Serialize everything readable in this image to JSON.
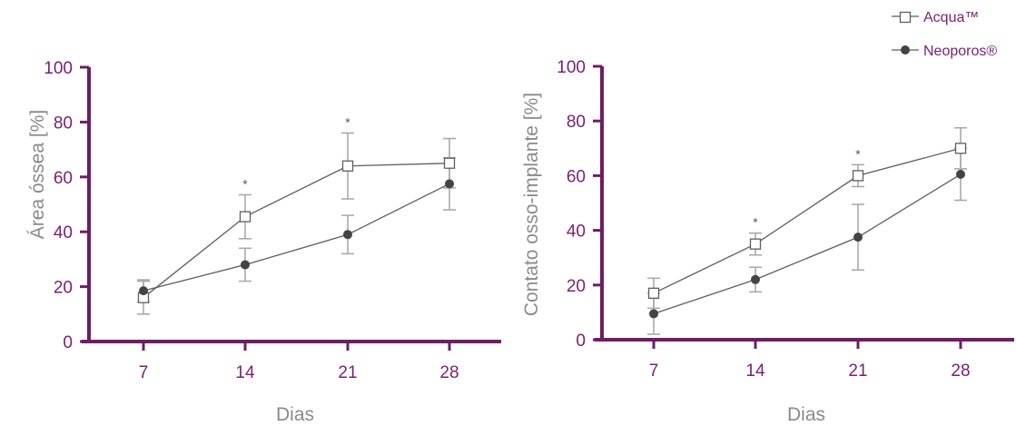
{
  "legend": [
    {
      "label": "Acqua™",
      "marker": "square-open"
    },
    {
      "label": "Neoporos®",
      "marker": "circle-filled"
    }
  ],
  "colors": {
    "axis": "#6e1d66",
    "tick_text": "#7a2072",
    "line": "#5e5e5e",
    "error": "#aaaaaa",
    "label": "#8a8a8a"
  },
  "chart_data": [
    {
      "type": "line",
      "xlabel": "Dias",
      "ylabel": "Área óssea [%]",
      "categories": [
        "7",
        "14",
        "21",
        "28"
      ],
      "ylim": [
        0,
        100
      ],
      "yticks": [
        "0",
        "20",
        "40",
        "60",
        "80",
        "100"
      ],
      "series": [
        {
          "name": "Acqua™",
          "marker": "square-open",
          "values": [
            16,
            45.5,
            64,
            65
          ],
          "err": [
            6,
            8,
            12,
            9
          ]
        },
        {
          "name": "Neoporos®",
          "marker": "circle-filled",
          "values": [
            18.5,
            28,
            39,
            57.5
          ],
          "err": [
            4,
            6,
            7,
            9.5
          ]
        }
      ],
      "significance": [
        {
          "category": "14",
          "mark": "*"
        },
        {
          "category": "21",
          "mark": "*"
        }
      ]
    },
    {
      "type": "line",
      "xlabel": "Dias",
      "ylabel": "Contato osso-implante [%]",
      "categories": [
        "7",
        "14",
        "21",
        "28"
      ],
      "ylim": [
        0,
        100
      ],
      "yticks": [
        "0",
        "20",
        "40",
        "60",
        "80",
        "100"
      ],
      "series": [
        {
          "name": "Acqua™",
          "marker": "square-open",
          "values": [
            17,
            35,
            60,
            70
          ],
          "err": [
            5.5,
            4,
            4,
            7.5
          ]
        },
        {
          "name": "Neoporos®",
          "marker": "circle-filled",
          "values": [
            9.5,
            22,
            37.5,
            60.5
          ],
          "err": [
            7.5,
            4.5,
            12,
            9.5
          ]
        }
      ],
      "significance": [
        {
          "category": "14",
          "mark": "*"
        },
        {
          "category": "21",
          "mark": "*"
        }
      ]
    }
  ]
}
